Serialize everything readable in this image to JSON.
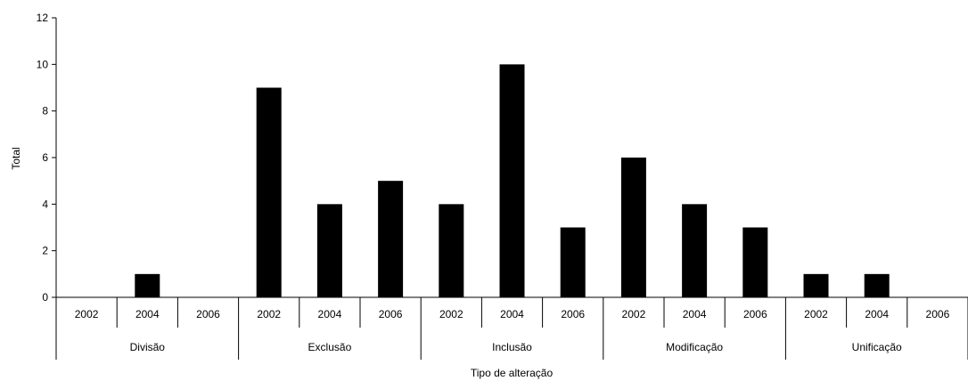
{
  "chart_data": {
    "type": "bar",
    "groups": [
      "Divisão",
      "Exclusão",
      "Inclusão",
      "Modificação",
      "Unificação"
    ],
    "subcategories": [
      "2002",
      "2004",
      "2006"
    ],
    "series": [
      {
        "values": [
          [
            0,
            1,
            0
          ],
          [
            9,
            4,
            5
          ],
          [
            4,
            10,
            3
          ],
          [
            6,
            4,
            3
          ],
          [
            1,
            1,
            0
          ]
        ]
      }
    ],
    "xlabel": "Tipo de alteração",
    "ylabel": "Total",
    "ylim": [
      0,
      12
    ],
    "yticks": [
      0,
      2,
      4,
      6,
      8,
      10,
      12
    ],
    "grid": false,
    "legend": "none",
    "bar_color": "#000000"
  }
}
